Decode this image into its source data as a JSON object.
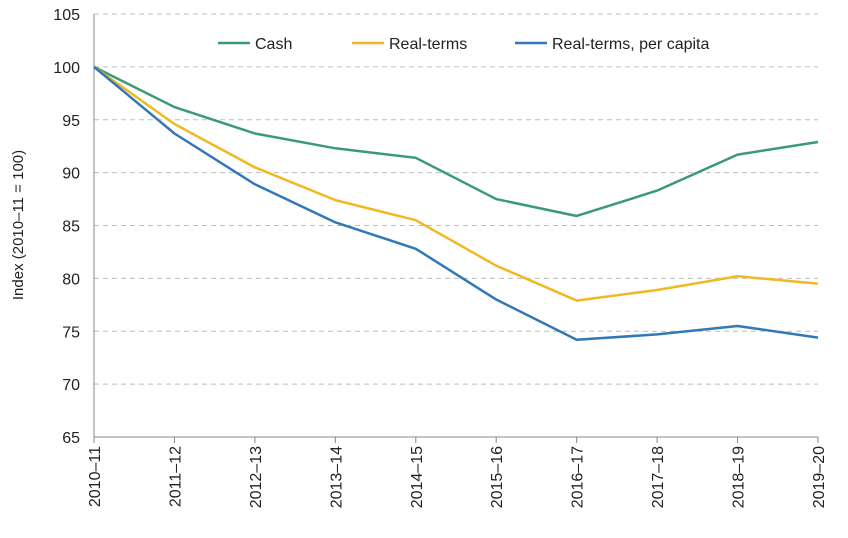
{
  "chart_data": {
    "type": "line",
    "title": "",
    "xlabel": "",
    "ylabel": "Index (2010–11 = 100)",
    "ylim": [
      65,
      105
    ],
    "yticks": [
      65,
      70,
      75,
      80,
      85,
      90,
      95,
      100,
      105
    ],
    "grid": true,
    "legend_position": "top",
    "categories": [
      "2010–11",
      "2011–12",
      "2012–13",
      "2013–14",
      "2014–15",
      "2015–16",
      "2016–17",
      "2017–18",
      "2018–19",
      "2019–20"
    ],
    "series": [
      {
        "name": "Cash",
        "color": "#3a9a78",
        "values": [
          100,
          96.2,
          93.7,
          92.3,
          91.4,
          87.5,
          85.9,
          88.3,
          91.7,
          92.9
        ]
      },
      {
        "name": "Real-terms",
        "color": "#f0b823",
        "values": [
          100,
          94.6,
          90.5,
          87.4,
          85.5,
          81.2,
          77.9,
          78.9,
          80.2,
          79.5
        ]
      },
      {
        "name": "Real-terms, per capita",
        "color": "#3278b8",
        "values": [
          100,
          93.7,
          88.9,
          85.3,
          82.8,
          78.0,
          74.2,
          74.7,
          75.5,
          74.4
        ]
      }
    ]
  }
}
